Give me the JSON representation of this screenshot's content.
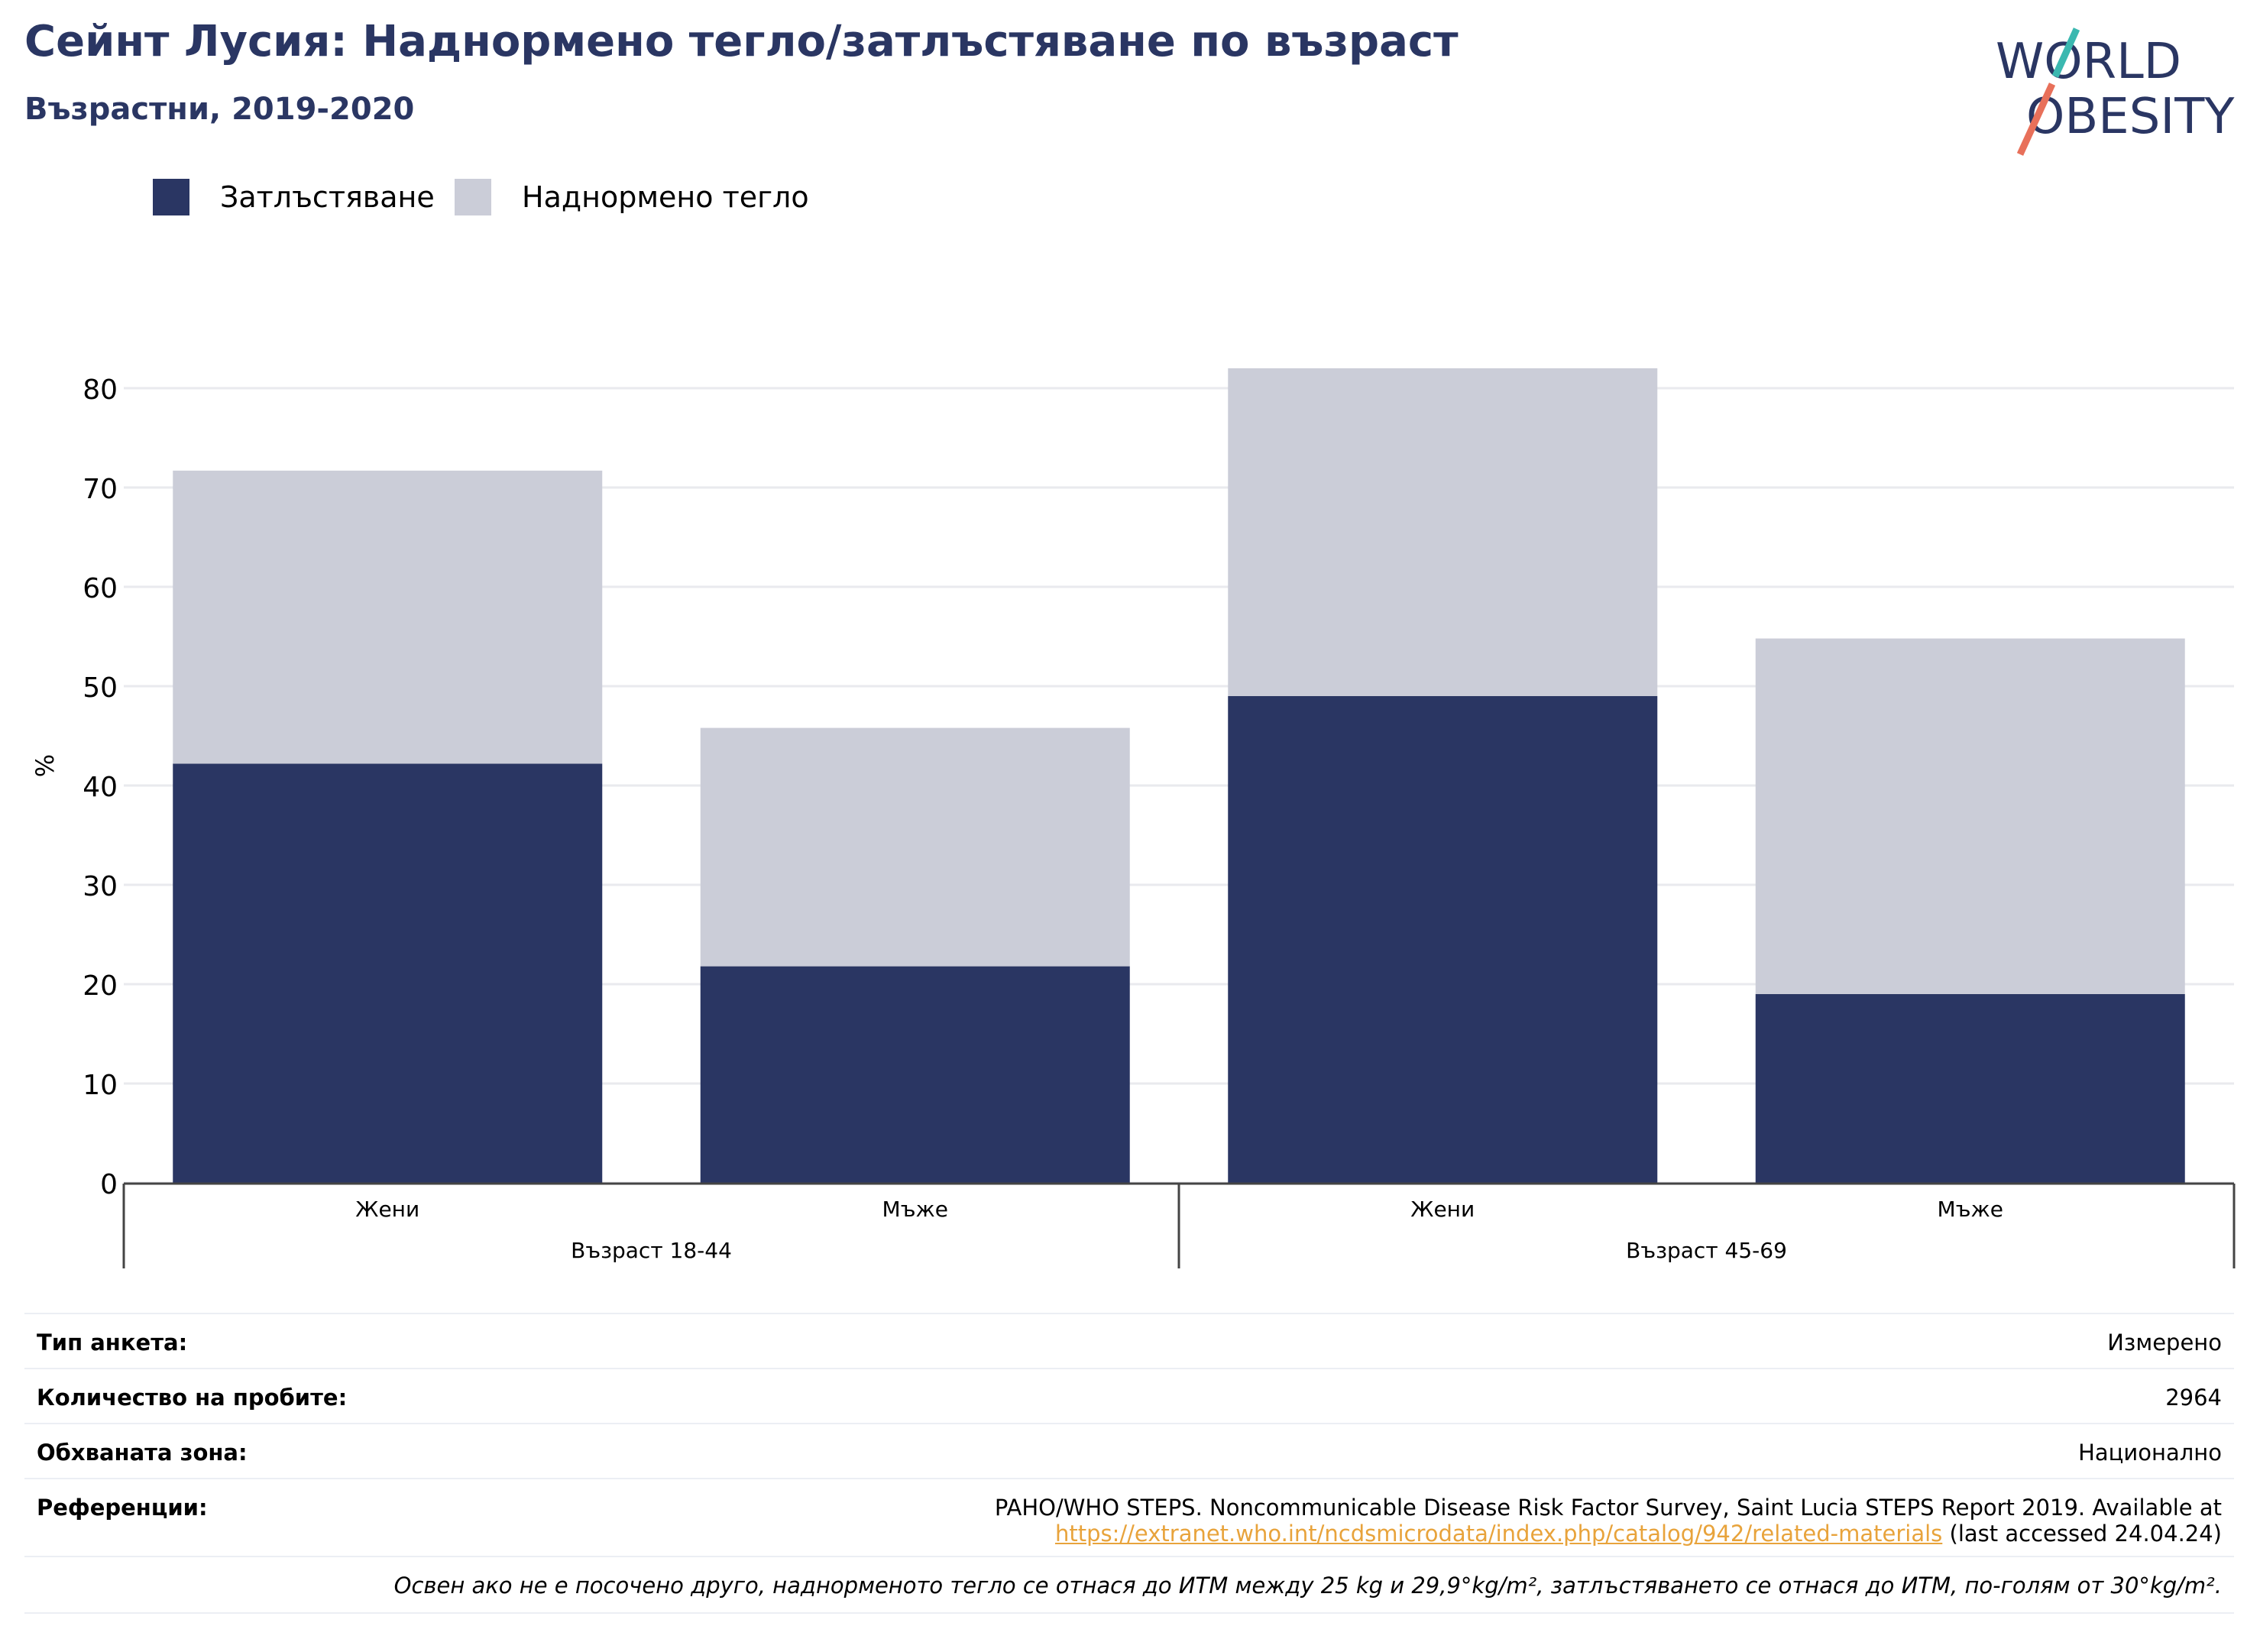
{
  "header": {
    "title": "Сейнт Лусия: Наднормено тегло/затлъстяване по възраст",
    "subtitle": "Възрастни, 2019-2020"
  },
  "logo": {
    "line1": "WORLD",
    "line2": "OBESITY",
    "colors": {
      "text": "#2a3663",
      "slash_top": "#3bb8b0",
      "slash_bottom": "#e8705a"
    }
  },
  "legend": {
    "items": [
      {
        "label": "Затлъстяване",
        "color": "#2a3663"
      },
      {
        "label": "Наднормено тегло",
        "color": "#cbcdd8"
      }
    ]
  },
  "chart_data": {
    "type": "bar",
    "stacked": true,
    "ylabel": "%",
    "ylim": [
      0,
      85
    ],
    "yticks": [
      0,
      10,
      20,
      30,
      40,
      50,
      60,
      70,
      80
    ],
    "grid": true,
    "legend_position": "top-left",
    "categories": [
      "Жени",
      "Мъже",
      "Жени",
      "Мъже"
    ],
    "groups": [
      {
        "label": "Възраст 18-44",
        "span": [
          0,
          1
        ]
      },
      {
        "label": "Възраст 45-69",
        "span": [
          2,
          3
        ]
      }
    ],
    "series": [
      {
        "name": "Затлъстяване",
        "color": "#2a3663",
        "values": [
          42.2,
          21.8,
          49.0,
          19.0
        ]
      },
      {
        "name": "Наднормено тегло",
        "color": "#cbcdd8",
        "values": [
          29.5,
          24.0,
          33.0,
          35.8
        ]
      }
    ]
  },
  "meta": {
    "survey_type": {
      "label": "Тип анкета:",
      "value": "Измерено"
    },
    "sample_size": {
      "label": "Количество на пробите:",
      "value": "2964"
    },
    "area": {
      "label": "Обхваната зона:",
      "value": "Национално"
    },
    "references": {
      "label": "Референции:",
      "line1": "PAHO/WHO STEPS. Noncommunicable Disease Risk Factor Survey, Saint Lucia STEPS Report 2019. Available at",
      "link": "https://extranet.who.int/ncdsmicrodata/index.php/catalog/942/related-materials",
      "after_link": " (last accessed 24.04.24)"
    },
    "note": "Освен ако не е посочено друго, наднорменото тегло се отнася до ИТМ между 25 kg и 29,9°kg/m², затлъстяването се отнася до ИТМ, по-голям от 30°kg/m²."
  }
}
